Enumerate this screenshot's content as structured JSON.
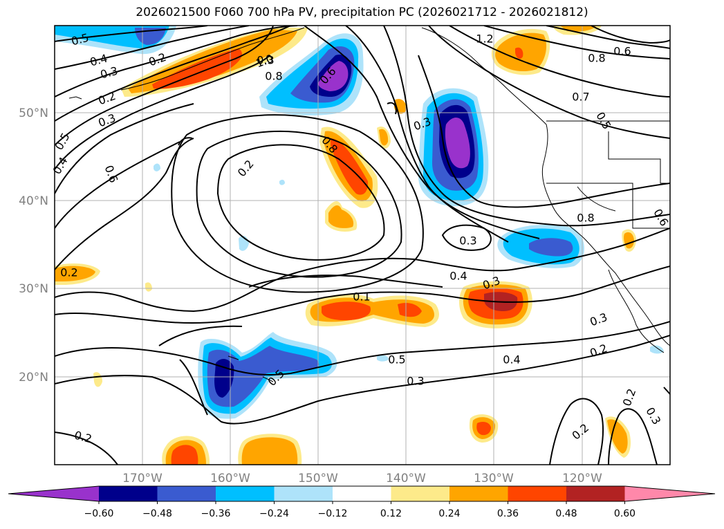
{
  "title": "2026021500 F060 700 hPa PV, precipitation PC (2026021712 - 2026021812)",
  "lat_labels": [
    "50°N",
    "40°N",
    "30°N",
    "20°N"
  ],
  "lon_labels": [
    "170°W",
    "160°W",
    "150°W",
    "140°W",
    "130°W",
    "120°W"
  ],
  "contour_labels": [
    "0.5",
    "0.4",
    "0.3",
    "0.2",
    "1.0",
    "0.8",
    "0.6",
    "1.2",
    "0.6",
    "0.8",
    "0.7",
    "0.5",
    "0.3",
    "0.5",
    "0.4",
    "0.6",
    "0.8",
    "0.3",
    "0.2",
    "0.8",
    "0.3",
    "0.6",
    "0.3",
    "0.2",
    "0.1",
    "0.4",
    "0.3",
    "0.5",
    "0.2",
    "0.5",
    "0.4",
    "0.3",
    "0.2",
    "0.2",
    "0.2",
    "0.3",
    "0.2",
    "0.3"
  ],
  "colorbar": {
    "ticks": [
      "−0.60",
      "−0.48",
      "−0.36",
      "−0.24",
      "−0.12",
      "0.12",
      "0.24",
      "0.36",
      "0.48",
      "0.60"
    ],
    "colors": [
      "#9932cc",
      "#00008b",
      "#3a5bd0",
      "#00bfff",
      "#aee3fa",
      "#ffffff",
      "#fdea8a",
      "#ffa500",
      "#ff4500",
      "#b22222",
      "#ff88aa"
    ]
  }
}
